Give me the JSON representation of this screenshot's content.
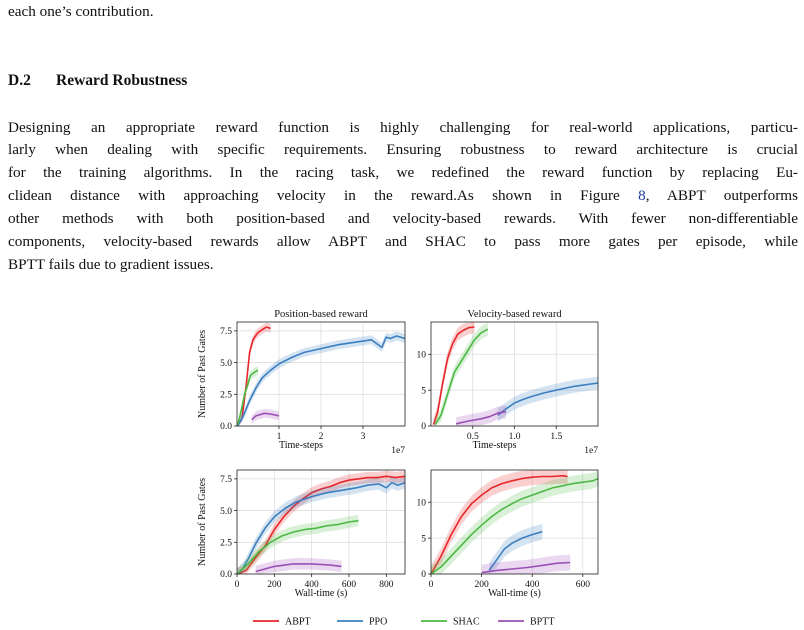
{
  "prev_paragraph_tail": "each one’s contribution.",
  "section": {
    "number": "D.2",
    "title": "Reward Robustness"
  },
  "paragraph_lines": [
    "Designing an appropriate reward function is highly challenging for real-world applications, particu-",
    "larly when dealing with specific requirements. Ensuring robustness to reward architecture is crucial",
    "for the training algorithms. In the racing task, we redefined the reward function by replacing Eu-",
    "clidean distance with approaching velocity in the reward.As shown in Figure ",
    "other methods with both position-based and velocity-based rewards. With fewer non-differentiable",
    "components, velocity-based rewards allow ABPT and SHAC to pass more gates per episode, while",
    "BPTT fails due to gradient issues."
  ],
  "figure_ref": "8",
  "line4_suffix": ", ABPT outperforms",
  "figure": {
    "legend": [
      {
        "name": "ABPT",
        "color": "#e8262a"
      },
      {
        "name": "PPO",
        "color": "#3c7fc0"
      },
      {
        "name": "SHAC",
        "color": "#4cb944"
      },
      {
        "name": "BPTT",
        "color": "#9b4fb5"
      }
    ]
  },
  "chart_data": [
    {
      "type": "line",
      "title": "Position-based reward",
      "xlabel": "Time-steps",
      "ylabel": "Number of Past Gates",
      "x_multiplier": "1e7",
      "xlim": [
        0,
        4.0
      ],
      "ylim": [
        0,
        8.2
      ],
      "xticks": [
        1,
        2,
        3
      ],
      "yticks": [
        "0.0",
        "2.5",
        "5.0",
        "7.5"
      ],
      "ytick_values": [
        0,
        2.5,
        5,
        7.5
      ],
      "grid": true,
      "series": [
        {
          "name": "ABPT",
          "x": [
            0.02,
            0.12,
            0.22,
            0.3,
            0.38,
            0.48,
            0.6,
            0.7,
            0.8
          ],
          "y": [
            0.1,
            0.6,
            3.2,
            5.8,
            6.8,
            7.3,
            7.6,
            7.8,
            7.7
          ]
        },
        {
          "name": "PPO",
          "x": [
            0.02,
            0.15,
            0.3,
            0.45,
            0.6,
            0.8,
            1.0,
            1.3,
            1.6,
            2.0,
            2.4,
            2.8,
            3.2,
            3.45,
            3.55,
            3.65,
            3.8,
            4.0
          ],
          "y": [
            0.0,
            0.8,
            2.0,
            3.0,
            3.8,
            4.4,
            4.9,
            5.4,
            5.8,
            6.1,
            6.4,
            6.6,
            6.8,
            6.2,
            7.0,
            6.9,
            7.1,
            6.9
          ]
        },
        {
          "name": "SHAC",
          "x": [
            0.02,
            0.1,
            0.18,
            0.26,
            0.32,
            0.4,
            0.5
          ],
          "y": [
            0.1,
            1.2,
            2.5,
            3.3,
            4.0,
            4.2,
            4.4
          ]
        },
        {
          "name": "BPTT",
          "x": [
            0.35,
            0.45,
            0.55,
            0.65,
            0.8,
            1.0
          ],
          "y": [
            0.5,
            0.8,
            0.9,
            1.0,
            0.95,
            0.8
          ]
        }
      ]
    },
    {
      "type": "line",
      "title": "Velocity-based reward",
      "xlabel": "Time-steps",
      "ylabel": "",
      "x_multiplier": "1e7",
      "xlim": [
        0,
        2.0
      ],
      "ylim": [
        0,
        14.5
      ],
      "xticks": [
        "0.5",
        "1.0",
        "1.5"
      ],
      "xtick_values": [
        0.5,
        1.0,
        1.5
      ],
      "yticks": [
        "0",
        "5",
        "10"
      ],
      "ytick_values": [
        0,
        5,
        10
      ],
      "grid": true,
      "series": [
        {
          "name": "ABPT",
          "x": [
            0.03,
            0.08,
            0.14,
            0.2,
            0.26,
            0.32,
            0.38,
            0.45,
            0.52
          ],
          "y": [
            0.2,
            2.0,
            6.0,
            9.5,
            11.5,
            12.8,
            13.3,
            13.7,
            13.8
          ]
        },
        {
          "name": "PPO",
          "x": [
            0.8,
            0.9,
            1.0,
            1.1,
            1.2,
            1.35,
            1.5,
            1.7,
            2.0
          ],
          "y": [
            1.5,
            2.4,
            3.2,
            3.7,
            4.1,
            4.6,
            5.0,
            5.5,
            6.0
          ]
        },
        {
          "name": "SHAC",
          "x": [
            0.05,
            0.12,
            0.2,
            0.28,
            0.36,
            0.44,
            0.52,
            0.6,
            0.68
          ],
          "y": [
            0.2,
            1.5,
            4.5,
            7.5,
            9.0,
            10.5,
            12.0,
            13.0,
            13.5
          ]
        },
        {
          "name": "BPTT",
          "x": [
            0.3,
            0.45,
            0.6,
            0.7,
            0.8,
            0.9
          ],
          "y": [
            0.3,
            0.7,
            1.0,
            1.3,
            1.8,
            2.0
          ]
        }
      ]
    },
    {
      "type": "line",
      "title": "",
      "xlabel": "Wall-time (s)",
      "ylabel": "Number of Past Gates",
      "xlim": [
        0,
        900
      ],
      "ylim": [
        0,
        8.2
      ],
      "xticks": [
        "0",
        "200",
        "400",
        "600",
        "800"
      ],
      "xtick_values": [
        0,
        200,
        400,
        600,
        800
      ],
      "yticks": [
        "0.0",
        "2.5",
        "5.0",
        "7.5"
      ],
      "ytick_values": [
        0,
        2.5,
        5,
        7.5
      ],
      "grid": true,
      "series": [
        {
          "name": "ABPT",
          "x": [
            0,
            50,
            100,
            150,
            200,
            250,
            300,
            350,
            400,
            450,
            500,
            550,
            600,
            650,
            700,
            750,
            800,
            850,
            900
          ],
          "y": [
            0.0,
            0.3,
            1.3,
            2.2,
            3.5,
            4.5,
            5.3,
            5.9,
            6.4,
            6.7,
            6.9,
            7.2,
            7.4,
            7.5,
            7.6,
            7.6,
            7.7,
            7.6,
            7.7
          ]
        },
        {
          "name": "PPO",
          "x": [
            0,
            30,
            60,
            100,
            150,
            200,
            260,
            320,
            400,
            480,
            560,
            640,
            700,
            760,
            800,
            830,
            860,
            900
          ],
          "y": [
            0.0,
            0.4,
            1.2,
            2.4,
            3.6,
            4.5,
            5.2,
            5.7,
            6.1,
            6.4,
            6.6,
            6.8,
            7.0,
            7.1,
            6.8,
            7.2,
            7.0,
            7.2
          ]
        },
        {
          "name": "SHAC",
          "x": [
            0,
            60,
            120,
            180,
            240,
            300,
            360,
            420,
            480,
            540,
            600,
            650
          ],
          "y": [
            0.0,
            0.8,
            1.8,
            2.5,
            3.0,
            3.3,
            3.5,
            3.6,
            3.8,
            3.9,
            4.1,
            4.2
          ]
        },
        {
          "name": "BPTT",
          "x": [
            100,
            200,
            300,
            400,
            500,
            560
          ],
          "y": [
            0.2,
            0.6,
            0.8,
            0.8,
            0.7,
            0.6
          ]
        }
      ]
    },
    {
      "type": "line",
      "title": "",
      "xlabel": "Wall-time (s)",
      "ylabel": "",
      "xlim": [
        0,
        660
      ],
      "ylim": [
        0,
        14.5
      ],
      "xticks": [
        "0",
        "200",
        "400",
        "600"
      ],
      "xtick_values": [
        0,
        200,
        400,
        600
      ],
      "yticks": [
        "0",
        "5",
        "10"
      ],
      "ytick_values": [
        0,
        5,
        10
      ],
      "grid": true,
      "series": [
        {
          "name": "ABPT",
          "x": [
            0,
            40,
            80,
            120,
            160,
            200,
            240,
            280,
            320,
            360,
            400,
            440,
            480,
            520,
            540
          ],
          "y": [
            0.0,
            2.5,
            5.5,
            8.0,
            9.8,
            11.0,
            12.0,
            12.6,
            13.0,
            13.3,
            13.5,
            13.6,
            13.6,
            13.7,
            13.6
          ]
        },
        {
          "name": "PPO",
          "x": [
            230,
            260,
            290,
            320,
            360,
            400,
            440
          ],
          "y": [
            0.5,
            2.0,
            3.5,
            4.3,
            5.0,
            5.5,
            5.9
          ]
        },
        {
          "name": "SHAC",
          "x": [
            0,
            40,
            80,
            120,
            160,
            200,
            240,
            280,
            320,
            360,
            400,
            440,
            480,
            520,
            560,
            600,
            640,
            660
          ],
          "y": [
            0.0,
            1.0,
            2.5,
            4.0,
            5.5,
            6.8,
            8.0,
            9.0,
            9.8,
            10.5,
            11.0,
            11.5,
            12.0,
            12.3,
            12.6,
            12.8,
            13.0,
            13.3
          ]
        },
        {
          "name": "BPTT",
          "x": [
            200,
            260,
            320,
            380,
            440,
            500,
            550
          ],
          "y": [
            0.2,
            0.5,
            0.7,
            0.9,
            1.2,
            1.5,
            1.6
          ]
        }
      ]
    }
  ]
}
